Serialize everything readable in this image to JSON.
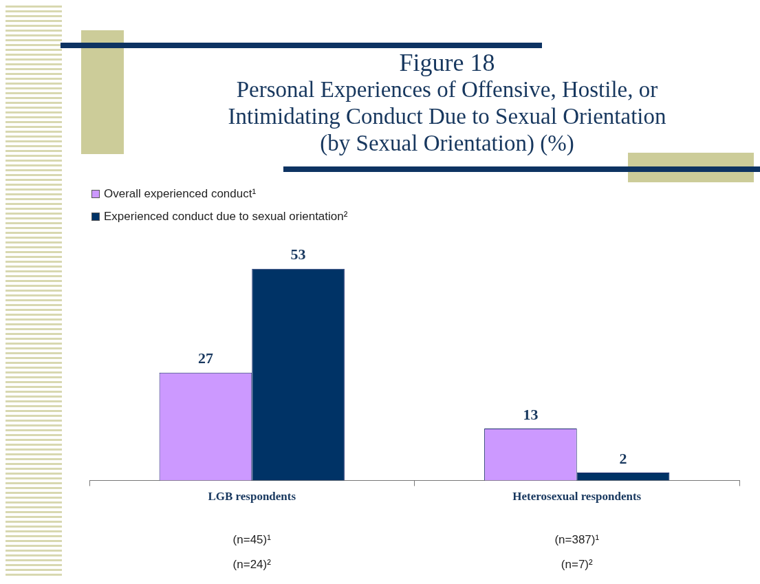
{
  "chart_data": {
    "type": "bar",
    "title": "Figure 18",
    "subtitle": "Personal Experiences of Offensive, Hostile, or Intimidating Conduct Due to Sexual Orientation (by Sexual Orientation) (%)",
    "categories": [
      "LGB respondents",
      "Heterosexual respondents"
    ],
    "series": [
      {
        "name": "Overall experienced conduct¹",
        "color": "#cc99ff",
        "values": [
          27,
          13
        ]
      },
      {
        "name": "Experienced conduct due to sexual orientation²",
        "color": "#003366",
        "values": [
          53,
          2
        ]
      }
    ],
    "data_labels": true,
    "legend": "top left",
    "grid": false,
    "annotations": [
      "(n=45)¹",
      "(n=24)²",
      "(n=387)¹",
      "(n=7)²"
    ]
  }
}
